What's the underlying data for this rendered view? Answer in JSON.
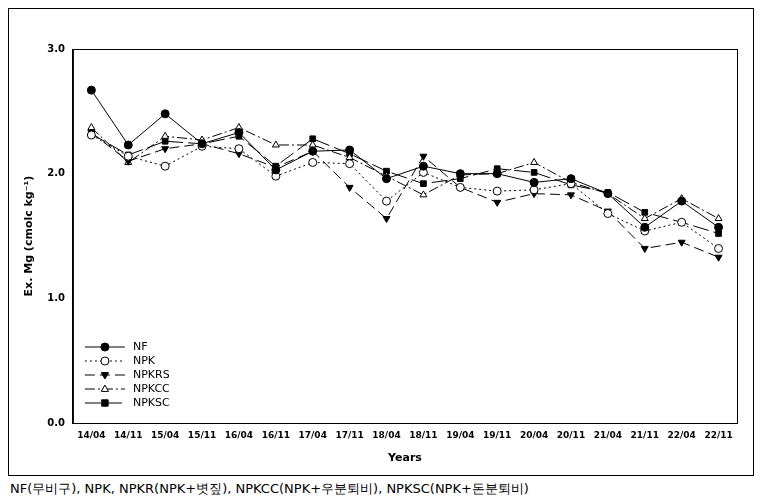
{
  "chart_data": {
    "type": "line",
    "x_label": "Years",
    "y_label": "Ex. Mg (cmolc kg⁻¹)",
    "caption": "NF(무비구), NPK, NPKR(NPK+볏짚), NPKCC(NPK+우분퇴비), NPKSC(NPK+돈분퇴비)",
    "categories": [
      "14/04",
      "14/11",
      "15/04",
      "15/11",
      "16/04",
      "16/11",
      "17/04",
      "17/11",
      "18/04",
      "18/11",
      "19/04",
      "19/11",
      "20/04",
      "20/11",
      "21/04",
      "21/11",
      "22/04",
      "22/11"
    ],
    "series": [
      {
        "name": "NF",
        "color": "#000000",
        "marker": "circle",
        "line_style": "solid",
        "values": [
          2.67,
          2.23,
          2.48,
          2.24,
          2.33,
          2.03,
          2.18,
          2.19,
          1.96,
          2.06,
          2.0,
          2.0,
          1.93,
          1.96,
          1.84,
          1.57,
          1.78,
          1.57
        ]
      },
      {
        "name": "NPK",
        "color": "#000000",
        "marker": "open_circle",
        "line_style": "dotted",
        "values": [
          2.31,
          2.14,
          2.06,
          2.22,
          2.2,
          1.98,
          2.09,
          2.08,
          1.78,
          2.01,
          1.89,
          1.86,
          1.87,
          1.92,
          1.68,
          1.54,
          1.61,
          1.4
        ]
      },
      {
        "name": "NPKRS",
        "color": "#000000",
        "marker": "triangle_down",
        "line_style": "dashed",
        "values": [
          2.33,
          2.1,
          2.2,
          2.24,
          2.16,
          2.05,
          2.18,
          1.89,
          1.64,
          2.14,
          1.89,
          1.77,
          1.84,
          1.83,
          1.7,
          1.4,
          1.45,
          1.33
        ]
      },
      {
        "name": "NPKCC",
        "color": "#000000",
        "marker": "open_triangle",
        "line_style": "dashdot",
        "values": [
          2.37,
          2.09,
          2.3,
          2.27,
          2.37,
          2.23,
          2.23,
          2.13,
          1.98,
          1.83,
          1.99,
          2.0,
          2.09,
          1.93,
          1.84,
          1.64,
          1.8,
          1.64
        ]
      },
      {
        "name": "NPKSC",
        "color": "#000000",
        "marker": "square",
        "line_style": "longdash",
        "values": [
          2.32,
          2.15,
          2.26,
          2.24,
          2.3,
          2.06,
          2.28,
          2.16,
          2.02,
          1.92,
          1.96,
          2.04,
          2.01,
          1.91,
          1.85,
          1.69,
          1.61,
          1.52
        ]
      }
    ],
    "ylim": [
      0,
      3
    ],
    "yticks": [
      {
        "value": 0,
        "label": "0.0"
      },
      {
        "value": 1,
        "label": "1.0"
      },
      {
        "value": 2,
        "label": "2.0"
      },
      {
        "value": 3,
        "label": "3.0"
      }
    ],
    "grid": false,
    "legend": "lower left"
  }
}
